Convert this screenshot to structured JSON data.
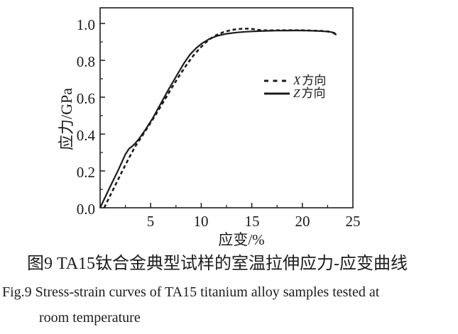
{
  "figure": {
    "caption_zh": "图9 TA15钛合金典型试样的室温拉伸应力-应变曲线",
    "caption_en_line1": "Fig.9  Stress-strain curves of TA15 titanium alloy samples tested at",
    "caption_en_line2": "room temperature"
  },
  "legend": {
    "items": [
      {
        "symbol": "dashed-line",
        "letter": "X",
        "suffix": "方向"
      },
      {
        "symbol": "solid-line",
        "letter": "Z",
        "suffix": "方向"
      }
    ]
  },
  "chart_data": {
    "type": "line",
    "title": "",
    "xlabel": "应变/%",
    "ylabel": "应力/GPa",
    "xlim": [
      0,
      25
    ],
    "ylim": [
      0,
      1.085
    ],
    "grid": false,
    "legend_position": "inside-right-middle",
    "line_color": "#1c1c1c",
    "x_ticks": {
      "major": [
        5,
        10,
        15,
        20,
        25
      ],
      "labels": [
        "5",
        "10",
        "15",
        "20",
        "25"
      ],
      "minor": [
        2.5,
        7.5,
        12.5,
        17.5,
        22.5
      ]
    },
    "y_ticks": {
      "major": [
        0,
        0.2,
        0.4,
        0.6,
        0.8,
        1.0
      ],
      "labels": [
        "0.0",
        "0.2",
        "0.4",
        "0.6",
        "0.8",
        "1.0"
      ],
      "minor": [
        0.1,
        0.3,
        0.5,
        0.7,
        0.9
      ]
    },
    "series": [
      {
        "name": "X方向",
        "style": "dashed",
        "x": [
          0.4,
          1.3,
          2.2,
          2.9,
          3.5,
          4.1,
          4.8,
          5.5,
          6.3,
          7.1,
          7.9,
          8.6,
          9.2,
          9.8,
          10.4,
          11.0,
          11.6,
          12.2,
          12.8,
          13.4,
          14.0,
          14.6,
          15.2,
          15.7,
          16.2,
          17.0,
          18.0,
          19.0,
          20.0,
          21.0,
          22.0,
          22.8,
          23.15,
          23.3
        ],
        "y": [
          0,
          0.1,
          0.2,
          0.275,
          0.335,
          0.385,
          0.445,
          0.505,
          0.578,
          0.652,
          0.722,
          0.78,
          0.824,
          0.862,
          0.895,
          0.921,
          0.94,
          0.953,
          0.962,
          0.968,
          0.971,
          0.972,
          0.969,
          0.965,
          0.963,
          0.9625,
          0.963,
          0.9635,
          0.963,
          0.961,
          0.959,
          0.955,
          0.947,
          0.934
        ]
      },
      {
        "name": "Z方向",
        "style": "solid",
        "x": [
          0,
          1.0,
          1.8,
          2.5,
          2.85,
          3.1,
          3.45,
          3.9,
          4.5,
          5.2,
          6.0,
          6.8,
          7.6,
          8.3,
          8.9,
          9.5,
          10.1,
          10.8,
          11.6,
          12.5,
          13.5,
          14.5,
          15.5,
          16.5,
          17.5,
          18.5,
          19.5,
          20.5,
          21.5,
          22.3,
          22.9,
          23.2,
          23.35
        ],
        "y": [
          0,
          0.115,
          0.205,
          0.29,
          0.32,
          0.33,
          0.348,
          0.378,
          0.425,
          0.485,
          0.565,
          0.645,
          0.72,
          0.785,
          0.832,
          0.866,
          0.893,
          0.916,
          0.933,
          0.944,
          0.951,
          0.9555,
          0.958,
          0.96,
          0.961,
          0.9615,
          0.962,
          0.961,
          0.9595,
          0.957,
          0.953,
          0.948,
          0.937
        ]
      }
    ]
  }
}
